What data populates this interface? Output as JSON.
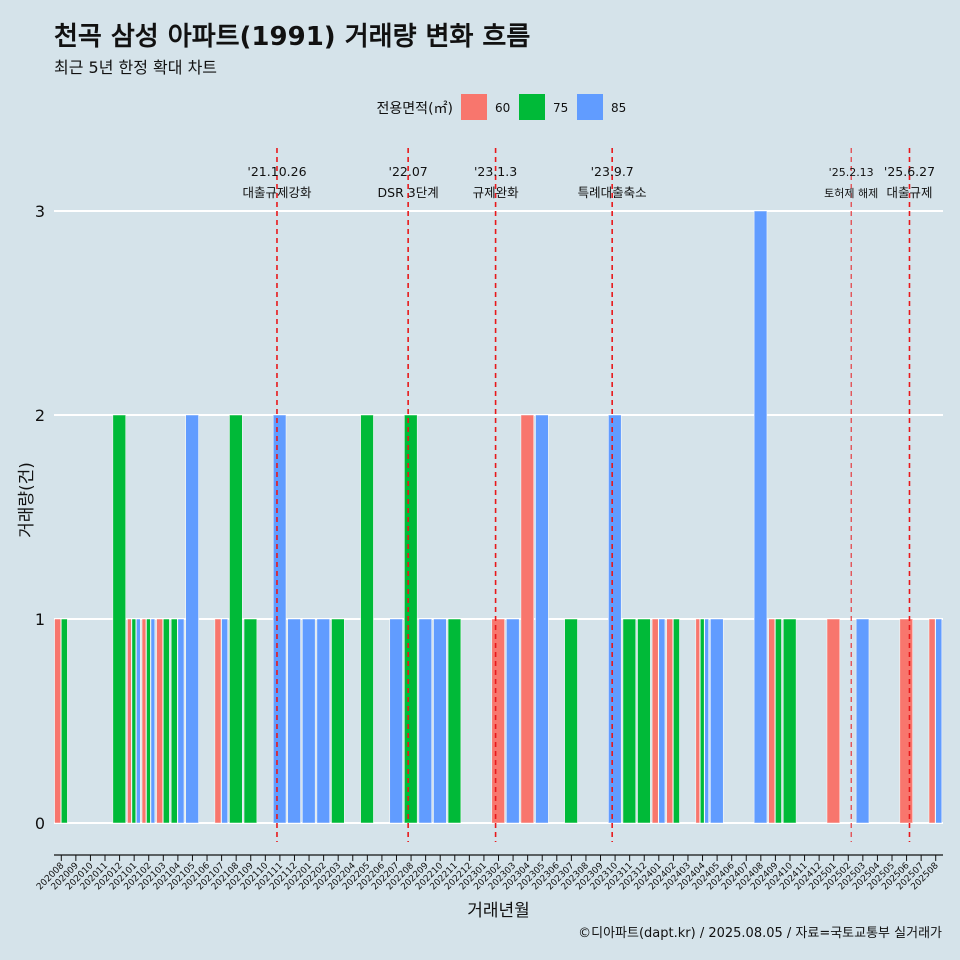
{
  "title": "천곡 삼성 아파트(1991) 거래량 변화 흐름",
  "subtitle": "최근 5년 한정 확대 차트",
  "caption": "©디아파트(dapt.kr) / 2025.08.05 / 자료=국토교통부 실거래가",
  "chart_data": {
    "type": "bar",
    "xlabel": "거래년월",
    "ylabel": "거래량(건)",
    "ylim": [
      0,
      3
    ],
    "yticks": [
      0,
      1,
      2,
      3
    ],
    "grid": true,
    "legend_title": "전용면적(㎡)",
    "legend_position": "top",
    "categories": [
      "202008",
      "202009",
      "202010",
      "202011",
      "202012",
      "202101",
      "202102",
      "202103",
      "202104",
      "202105",
      "202106",
      "202107",
      "202108",
      "202109",
      "202110",
      "202111",
      "202112",
      "202201",
      "202202",
      "202203",
      "202204",
      "202205",
      "202206",
      "202207",
      "202208",
      "202209",
      "202210",
      "202211",
      "202212",
      "202301",
      "202302",
      "202303",
      "202304",
      "202305",
      "202306",
      "202307",
      "202308",
      "202309",
      "202310",
      "202311",
      "202312",
      "202401",
      "202402",
      "202403",
      "202404",
      "202405",
      "202406",
      "202407",
      "202408",
      "202409",
      "202410",
      "202411",
      "202412",
      "202501",
      "202502",
      "202503",
      "202504",
      "202505",
      "202506",
      "202507",
      "202508"
    ],
    "series": [
      {
        "name": "60",
        "color": "#f8766d",
        "values": [
          1,
          0,
          0,
          0,
          0,
          1,
          1,
          1,
          0,
          0,
          0,
          1,
          0,
          0,
          0,
          0,
          0,
          0,
          0,
          0,
          0,
          0,
          0,
          0,
          0,
          0,
          0,
          0,
          0,
          0,
          1,
          0,
          2,
          0,
          0,
          0,
          0,
          0,
          0,
          0,
          0,
          1,
          1,
          0,
          1,
          0,
          0,
          0,
          0,
          1,
          0,
          0,
          0,
          1,
          0,
          0,
          0,
          0,
          1,
          0,
          1
        ]
      },
      {
        "name": "75",
        "color": "#00ba38",
        "values": [
          1,
          0,
          0,
          0,
          2,
          1,
          1,
          1,
          1,
          0,
          0,
          0,
          2,
          1,
          0,
          0,
          0,
          0,
          0,
          1,
          0,
          2,
          0,
          0,
          2,
          0,
          0,
          1,
          0,
          0,
          0,
          0,
          0,
          0,
          0,
          1,
          0,
          0,
          0,
          1,
          1,
          0,
          1,
          0,
          1,
          0,
          0,
          0,
          0,
          1,
          1,
          0,
          0,
          0,
          0,
          0,
          0,
          0,
          0,
          0,
          0
        ]
      },
      {
        "name": "85",
        "color": "#619cff",
        "values": [
          0,
          0,
          0,
          0,
          0,
          1,
          1,
          0,
          1,
          2,
          0,
          1,
          0,
          0,
          0,
          2,
          1,
          1,
          1,
          0,
          0,
          0,
          0,
          1,
          0,
          1,
          1,
          0,
          0,
          0,
          0,
          1,
          0,
          2,
          0,
          0,
          0,
          0,
          2,
          0,
          0,
          1,
          0,
          0,
          1,
          1,
          0,
          0,
          3,
          0,
          0,
          0,
          0,
          0,
          0,
          1,
          0,
          0,
          0,
          0,
          1
        ]
      }
    ],
    "events": [
      {
        "date": "'21.10.26",
        "label": "대출규제강화",
        "index": 14.8
      },
      {
        "date": "'22.07",
        "label": "DSR 3단계",
        "index": 23.8
      },
      {
        "date": "'23.1.3",
        "label": "규제완화",
        "index": 29.8
      },
      {
        "date": "'23.9.7",
        "label": "특례대출축소",
        "index": 37.8
      },
      {
        "date": "'25.2.13",
        "label": "토허제 해제",
        "index": 54.2,
        "style": "thin"
      },
      {
        "date": "'25.6.27",
        "label": "대출규제",
        "index": 58.2
      }
    ]
  }
}
